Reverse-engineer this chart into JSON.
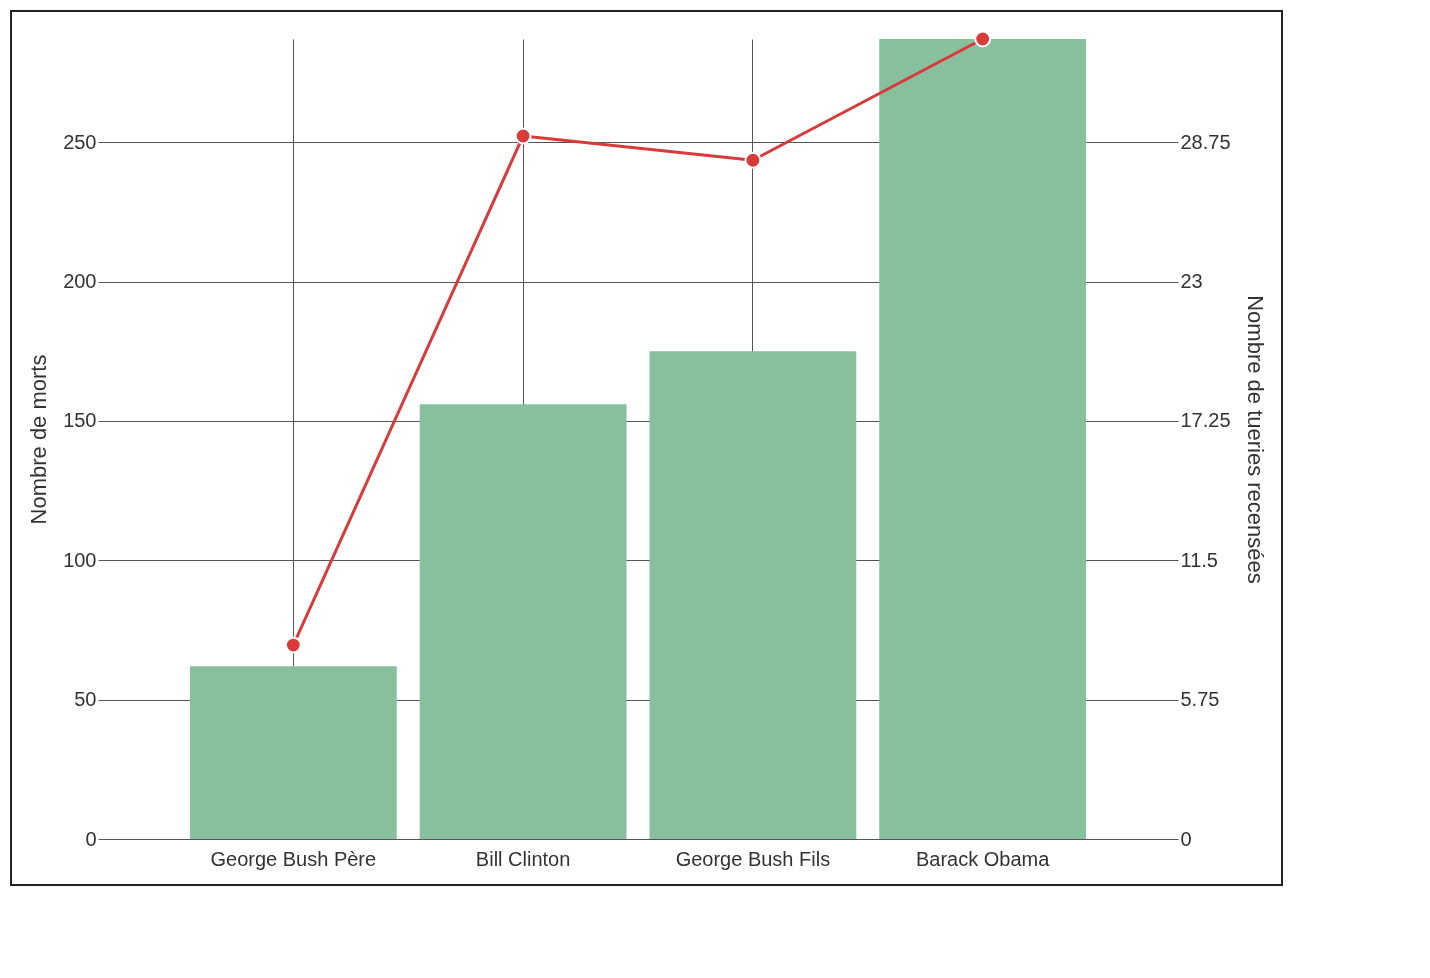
{
  "chart_data": {
    "type": "bar",
    "categories": [
      "George Bush Père",
      "Bill Clinton",
      "George Bush Fils",
      "Barack Obama"
    ],
    "ylabel": "Nombre de morts",
    "y2label": "Nombre de tueries recensées",
    "series": [
      {
        "color": "#88bf9d",
        "values": [
          62,
          156,
          175,
          287
        ]
      },
      {
        "type": "line",
        "axis": "y2",
        "color": "#d93a3a",
        "values": [
          8,
          29,
          28,
          33
        ]
      }
    ],
    "ylim": [
      0,
      287
    ],
    "yticks": [
      0,
      50,
      100,
      150,
      200,
      250
    ],
    "y2lim": [
      0,
      33
    ],
    "y2ticks": [
      0,
      5.75,
      11.5,
      17.25,
      23,
      28.75
    ],
    "grid": true,
    "marker": "circle",
    "line_style": "solid"
  }
}
